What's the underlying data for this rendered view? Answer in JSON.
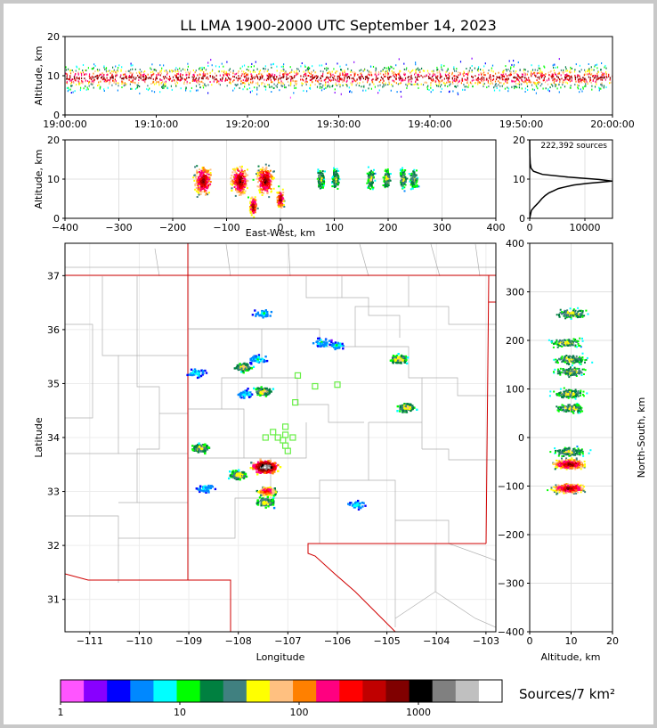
{
  "chart_data": [
    {
      "id": "time_height",
      "type": "heatmap",
      "title": "LL LMA 1900-2000 UTC September 14, 2023",
      "ylabel": "Altitude, km",
      "ylim": [
        0,
        20
      ],
      "yticks": [
        0,
        10,
        20
      ],
      "xlim": [
        "19:00:00",
        "20:00:00"
      ],
      "xticks": [
        "19:00:00",
        "19:10:00",
        "19:20:00",
        "19:30:00",
        "19:40:00",
        "19:50:00",
        "20:00:00"
      ],
      "peak_altitude_km": 9.5
    },
    {
      "id": "ew_altitude",
      "type": "heatmap",
      "xlabel": "East-West, km",
      "ylabel": "Altitude, km",
      "xlim": [
        -400,
        400
      ],
      "ylim": [
        0,
        20
      ],
      "xticks": [
        -400,
        -300,
        -200,
        -100,
        0,
        100,
        200,
        300,
        400
      ],
      "yticks": [
        0,
        10,
        20
      ],
      "cells": [
        {
          "x": -143,
          "z": 9.5
        },
        {
          "x": -75,
          "z": 9.5
        },
        {
          "x": -28,
          "z": 9.5
        },
        {
          "x": -50,
          "z": 3
        },
        {
          "x": 0,
          "z": 5
        },
        {
          "x": 75,
          "z": 10
        },
        {
          "x": 103,
          "z": 10
        },
        {
          "x": 168,
          "z": 10
        },
        {
          "x": 198,
          "z": 10
        },
        {
          "x": 228,
          "z": 10
        },
        {
          "x": 248,
          "z": 10
        }
      ]
    },
    {
      "id": "altitude_histogram",
      "type": "line",
      "annotation": "222,392 sources",
      "xlim": [
        0,
        15000
      ],
      "ylim": [
        0,
        20
      ],
      "xticks": [
        0,
        10000
      ],
      "yticks": [
        0,
        10,
        20
      ],
      "x": [
        0,
        300,
        900,
        1600,
        2200,
        2800,
        3500,
        4300,
        5200,
        6400,
        8000,
        10500,
        12800,
        14900,
        12500,
        7000,
        2300,
        700,
        250,
        100,
        40,
        0
      ],
      "y": [
        0,
        2,
        3,
        4,
        5,
        5.8,
        6.5,
        7,
        7.6,
        8,
        8.5,
        8.9,
        9.2,
        9.5,
        9.9,
        10.5,
        11.2,
        12,
        12.8,
        14,
        16,
        20
      ]
    },
    {
      "id": "plan_view",
      "type": "heatmap",
      "xlabel": "Longitude",
      "ylabel": "Latitude",
      "xlim": [
        -111.5,
        -102.8
      ],
      "ylim": [
        30.4,
        37.6
      ],
      "xticks": [
        -111,
        -110,
        -109,
        -108,
        -107,
        -106,
        -105,
        -104,
        -103
      ],
      "yticks": [
        31,
        32,
        33,
        34,
        35,
        36,
        37
      ],
      "cells": [
        {
          "lon": -107.45,
          "lat": 33.45,
          "level": "peak"
        },
        {
          "lon": -107.42,
          "lat": 33.0,
          "level": "high"
        },
        {
          "lon": -107.45,
          "lat": 32.8,
          "level": "mid"
        },
        {
          "lon": -108.0,
          "lat": 33.3,
          "level": "mid"
        },
        {
          "lon": -108.75,
          "lat": 33.8,
          "level": "mid"
        },
        {
          "lon": -108.65,
          "lat": 33.05,
          "level": "low"
        },
        {
          "lon": -107.9,
          "lat": 35.3,
          "level": "mid"
        },
        {
          "lon": -107.6,
          "lat": 35.45,
          "level": "low"
        },
        {
          "lon": -107.5,
          "lat": 34.85,
          "level": "mid"
        },
        {
          "lon": -107.85,
          "lat": 34.8,
          "level": "low"
        },
        {
          "lon": -104.75,
          "lat": 35.45,
          "level": "mid"
        },
        {
          "lon": -104.6,
          "lat": 34.55,
          "level": "mid"
        },
        {
          "lon": -106.3,
          "lat": 35.75,
          "level": "low"
        },
        {
          "lon": -106.0,
          "lat": 35.7,
          "level": "low"
        },
        {
          "lon": -107.5,
          "lat": 36.3,
          "level": "low"
        },
        {
          "lon": -105.6,
          "lat": 32.75,
          "level": "low"
        },
        {
          "lon": -108.85,
          "lat": 35.2,
          "level": "low"
        }
      ],
      "stations": [
        {
          "lon": -106.8,
          "lat": 35.15
        },
        {
          "lon": -106.45,
          "lat": 34.95
        },
        {
          "lon": -106.0,
          "lat": 34.98
        },
        {
          "lon": -106.85,
          "lat": 34.65
        },
        {
          "lon": -107.05,
          "lat": 34.2
        },
        {
          "lon": -107.05,
          "lat": 34.05
        },
        {
          "lon": -107.3,
          "lat": 34.1
        },
        {
          "lon": -107.45,
          "lat": 34.0
        },
        {
          "lon": -107.2,
          "lat": 34.0
        },
        {
          "lon": -107.1,
          "lat": 33.95
        },
        {
          "lon": -106.9,
          "lat": 34.0
        },
        {
          "lon": -107.05,
          "lat": 33.85
        },
        {
          "lon": -107.0,
          "lat": 33.75
        }
      ]
    },
    {
      "id": "altitude_ns",
      "type": "heatmap",
      "xlabel": "Altitude, km",
      "ylabel": "North-South, km",
      "xlim": [
        0,
        20
      ],
      "ylim": [
        -400,
        400
      ],
      "xticks": [
        0,
        10,
        20
      ],
      "yticks": [
        -400,
        -300,
        -200,
        -100,
        0,
        100,
        200,
        300,
        400
      ],
      "cells": [
        {
          "z": 9.5,
          "ns": -55
        },
        {
          "z": 9.5,
          "ns": -105
        },
        {
          "z": 9.5,
          "ns": -30
        },
        {
          "z": 10,
          "ns": 60
        },
        {
          "z": 9.5,
          "ns": 90
        },
        {
          "z": 10,
          "ns": 135
        },
        {
          "z": 10,
          "ns": 160
        },
        {
          "z": 9,
          "ns": 195
        },
        {
          "z": 10,
          "ns": 255
        }
      ]
    }
  ],
  "colorbar": {
    "label": "Sources/7 km²",
    "ticks": [
      "1",
      "10",
      "100",
      "1000"
    ],
    "colors": [
      "#ff55ff",
      "#8800ff",
      "#0000ff",
      "#0088ff",
      "#00ffff",
      "#00ff00",
      "#008040",
      "#408080",
      "#ffff00",
      "#ffc080",
      "#ff8000",
      "#ff0080",
      "#ff0000",
      "#c00000",
      "#800000",
      "#000000",
      "#808080",
      "#c0c0c0",
      "#ffffff"
    ]
  }
}
